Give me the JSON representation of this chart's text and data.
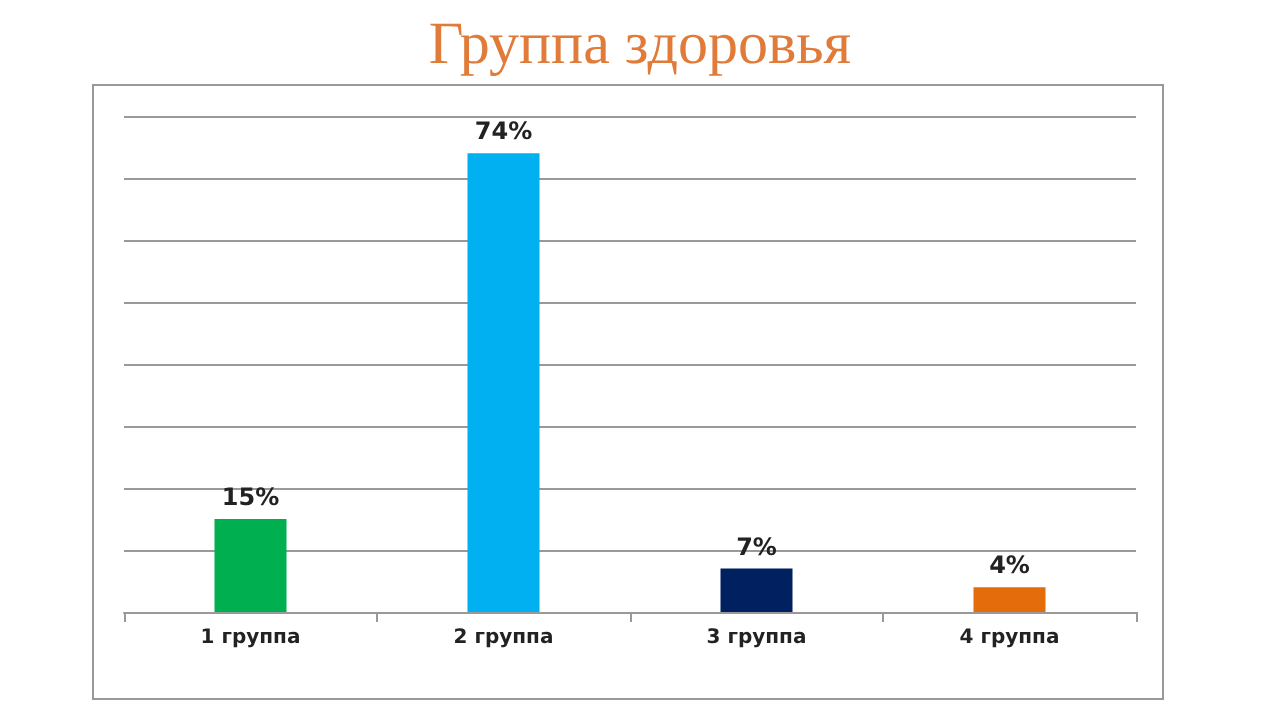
{
  "chart_data": {
    "type": "bar",
    "title": "Группа здоровья",
    "categories": [
      "1 группа",
      "2 группа",
      "3 группа",
      "4 группа"
    ],
    "values": [
      15,
      74,
      7,
      4
    ],
    "value_labels": [
      "15%",
      "74%",
      "7%",
      "4%"
    ],
    "colors": [
      "#00b050",
      "#00b0f0",
      "#002060",
      "#e46c0a"
    ],
    "grid": "y",
    "tick_labels": "x"
  }
}
